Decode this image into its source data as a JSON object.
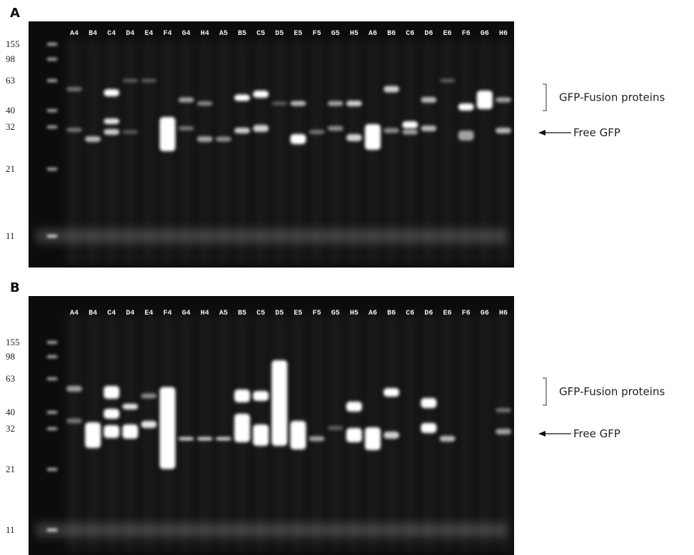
{
  "panels": [
    {
      "label": "A",
      "lanes": [
        "A4",
        "B4",
        "C4",
        "D4",
        "E4",
        "F4",
        "G4",
        "H4",
        "A5",
        "B5",
        "C5",
        "D5",
        "E5",
        "F5",
        "G5",
        "H5",
        "A6",
        "B6",
        "C6",
        "D6",
        "E6",
        "F6",
        "G6",
        "H6"
      ],
      "markers": [
        155,
        98,
        63,
        40,
        32,
        21,
        11
      ],
      "annotations": {
        "fusion": "GFP-Fusion proteins",
        "free": "Free GFP"
      }
    },
    {
      "label": "B",
      "lanes": [
        "A4",
        "B4",
        "C4",
        "D4",
        "E4",
        "F4",
        "G4",
        "H4",
        "A5",
        "B5",
        "C5",
        "D5",
        "E5",
        "F5",
        "G5",
        "H5",
        "A6",
        "B6",
        "C6",
        "D6",
        "E6",
        "F6",
        "G6",
        "H6"
      ],
      "markers": [
        155,
        98,
        63,
        40,
        32,
        21,
        11
      ],
      "annotations": {
        "fusion": "GFP-Fusion proteins",
        "free": "Free GFP"
      }
    }
  ]
}
